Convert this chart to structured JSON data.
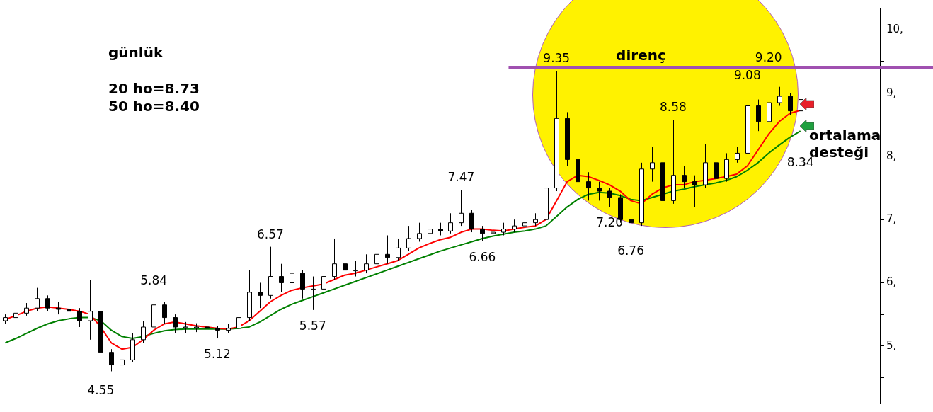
{
  "chart_data": {
    "type": "candlestick",
    "title": "günlük",
    "categories": [
      null,
      null,
      null,
      null,
      null,
      null,
      null,
      null,
      null,
      null,
      null,
      null,
      null,
      null,
      null,
      null,
      null,
      null,
      null,
      null,
      null,
      null,
      null,
      null,
      null,
      null,
      null,
      null,
      null,
      null,
      null,
      null,
      null,
      null,
      null,
      null,
      null,
      null,
      null,
      null,
      null,
      null,
      null,
      null,
      null,
      null,
      null,
      null,
      null,
      null,
      null,
      null,
      null,
      null,
      null,
      null,
      null,
      null,
      null,
      null,
      null,
      null,
      null,
      null,
      null,
      null,
      null,
      null,
      null,
      null,
      null,
      null,
      null,
      null,
      null,
      null,
      null,
      null,
      null,
      null,
      null,
      null,
      null
    ],
    "ohlc": [
      [
        5.4,
        5.5,
        5.35,
        5.45
      ],
      [
        5.45,
        5.6,
        5.4,
        5.52
      ],
      [
        5.52,
        5.68,
        5.48,
        5.6
      ],
      [
        5.6,
        5.92,
        5.55,
        5.75
      ],
      [
        5.75,
        5.8,
        5.55,
        5.6
      ],
      [
        5.6,
        5.7,
        5.5,
        5.58
      ],
      [
        5.58,
        5.65,
        5.45,
        5.55
      ],
      [
        5.55,
        5.6,
        5.3,
        5.4
      ],
      [
        5.4,
        6.05,
        5.1,
        5.55
      ],
      [
        5.55,
        5.6,
        4.55,
        4.9
      ],
      [
        4.9,
        4.95,
        4.6,
        4.7
      ],
      [
        4.7,
        4.9,
        4.65,
        4.78
      ],
      [
        4.78,
        5.2,
        4.75,
        5.1
      ],
      [
        5.1,
        5.4,
        5.05,
        5.3
      ],
      [
        5.3,
        5.84,
        5.25,
        5.65
      ],
      [
        5.65,
        5.7,
        5.35,
        5.45
      ],
      [
        5.45,
        5.5,
        5.2,
        5.3
      ],
      [
        5.3,
        5.38,
        5.2,
        5.3
      ],
      [
        5.3,
        5.36,
        5.22,
        5.3
      ],
      [
        5.3,
        5.35,
        5.18,
        5.28
      ],
      [
        5.28,
        5.32,
        5.12,
        5.25
      ],
      [
        5.25,
        5.35,
        5.2,
        5.28
      ],
      [
        5.28,
        5.55,
        5.25,
        5.45
      ],
      [
        5.45,
        6.2,
        5.4,
        5.85
      ],
      [
        5.85,
        6.0,
        5.6,
        5.8
      ],
      [
        5.8,
        6.57,
        5.75,
        6.1
      ],
      [
        6.1,
        6.3,
        5.85,
        6.0
      ],
      [
        6.0,
        6.4,
        5.9,
        6.15
      ],
      [
        6.15,
        6.2,
        5.75,
        5.9
      ],
      [
        5.9,
        6.1,
        5.57,
        5.9
      ],
      [
        5.9,
        6.25,
        5.85,
        6.1
      ],
      [
        6.1,
        6.7,
        6.05,
        6.3
      ],
      [
        6.3,
        6.35,
        6.1,
        6.2
      ],
      [
        6.2,
        6.35,
        6.1,
        6.2
      ],
      [
        6.2,
        6.45,
        6.15,
        6.3
      ],
      [
        6.3,
        6.6,
        6.25,
        6.45
      ],
      [
        6.45,
        6.75,
        6.3,
        6.4
      ],
      [
        6.4,
        6.7,
        6.35,
        6.55
      ],
      [
        6.55,
        6.9,
        6.5,
        6.7
      ],
      [
        6.7,
        6.95,
        6.65,
        6.78
      ],
      [
        6.78,
        6.95,
        6.7,
        6.85
      ],
      [
        6.85,
        6.95,
        6.75,
        6.82
      ],
      [
        6.82,
        7.1,
        6.78,
        6.95
      ],
      [
        6.95,
        7.47,
        6.9,
        7.1
      ],
      [
        7.1,
        7.15,
        6.8,
        6.85
      ],
      [
        6.85,
        6.9,
        6.66,
        6.78
      ],
      [
        6.78,
        6.9,
        6.72,
        6.8
      ],
      [
        6.8,
        6.95,
        6.75,
        6.85
      ],
      [
        6.85,
        7.0,
        6.8,
        6.9
      ],
      [
        6.9,
        7.05,
        6.85,
        6.95
      ],
      [
        6.95,
        7.1,
        6.9,
        7.0
      ],
      [
        7.0,
        8.0,
        6.95,
        7.5
      ],
      [
        7.5,
        9.35,
        7.45,
        8.6
      ],
      [
        8.6,
        8.7,
        7.85,
        7.95
      ],
      [
        7.95,
        8.05,
        7.5,
        7.6
      ],
      [
        7.6,
        7.75,
        7.3,
        7.5
      ],
      [
        7.5,
        7.6,
        7.3,
        7.45
      ],
      [
        7.45,
        7.5,
        7.2,
        7.35
      ],
      [
        7.35,
        7.4,
        6.95,
        7.0
      ],
      [
        7.0,
        7.1,
        6.76,
        6.95
      ],
      [
        6.95,
        7.9,
        6.9,
        7.8
      ],
      [
        7.8,
        8.15,
        7.6,
        7.9
      ],
      [
        7.9,
        7.95,
        6.9,
        7.3
      ],
      [
        7.3,
        8.58,
        7.25,
        7.7
      ],
      [
        7.7,
        7.85,
        7.5,
        7.6
      ],
      [
        7.6,
        7.7,
        7.2,
        7.55
      ],
      [
        7.55,
        8.2,
        7.5,
        7.9
      ],
      [
        7.9,
        7.95,
        7.4,
        7.65
      ],
      [
        7.65,
        8.05,
        7.6,
        7.95
      ],
      [
        7.95,
        8.15,
        7.9,
        8.05
      ],
      [
        8.05,
        9.08,
        8.0,
        8.8
      ],
      [
        8.8,
        8.9,
        8.4,
        8.55
      ],
      [
        8.55,
        9.2,
        8.5,
        8.85
      ],
      [
        8.85,
        9.1,
        8.8,
        8.95
      ],
      [
        8.95,
        9.0,
        8.65,
        8.72
      ],
      [
        8.72,
        8.95,
        8.7,
        8.9
      ],
      null,
      null,
      null,
      null,
      null,
      null,
      null
    ],
    "series": [
      {
        "type": "line",
        "color": "#ff0000",
        "values": [
          5.42,
          5.48,
          5.55,
          5.6,
          5.62,
          5.6,
          5.58,
          5.55,
          5.5,
          5.3,
          5.05,
          4.95,
          4.98,
          5.1,
          5.25,
          5.35,
          5.38,
          5.35,
          5.32,
          5.3,
          5.28,
          5.27,
          5.3,
          5.4,
          5.55,
          5.7,
          5.8,
          5.88,
          5.92,
          5.95,
          5.98,
          6.05,
          6.12,
          6.15,
          6.2,
          6.25,
          6.3,
          6.35,
          6.45,
          6.55,
          6.62,
          6.68,
          6.72,
          6.8,
          6.85,
          6.85,
          6.83,
          6.82,
          6.85,
          6.88,
          6.9,
          7.0,
          7.3,
          7.6,
          7.7,
          7.68,
          7.62,
          7.55,
          7.45,
          7.3,
          7.25,
          7.4,
          7.5,
          7.55,
          7.55,
          7.6,
          7.62,
          7.65,
          7.68,
          7.72,
          7.85,
          8.1,
          8.35,
          8.55,
          8.68,
          8.73,
          null,
          null,
          null,
          null,
          null,
          null,
          null
        ]
      },
      {
        "type": "line",
        "color": "#008000",
        "values": [
          5.05,
          5.12,
          5.2,
          5.28,
          5.35,
          5.4,
          5.43,
          5.45,
          5.45,
          5.4,
          5.25,
          5.15,
          5.12,
          5.15,
          5.2,
          5.24,
          5.26,
          5.27,
          5.27,
          5.27,
          5.27,
          5.27,
          5.28,
          5.3,
          5.38,
          5.48,
          5.58,
          5.66,
          5.72,
          5.78,
          5.84,
          5.9,
          5.96,
          6.02,
          6.08,
          6.14,
          6.2,
          6.26,
          6.32,
          6.38,
          6.44,
          6.5,
          6.55,
          6.6,
          6.65,
          6.7,
          6.74,
          6.77,
          6.8,
          6.82,
          6.85,
          6.9,
          7.05,
          7.2,
          7.32,
          7.4,
          7.43,
          7.42,
          7.38,
          7.32,
          7.3,
          7.35,
          7.4,
          7.45,
          7.48,
          7.52,
          7.55,
          7.58,
          7.62,
          7.68,
          7.78,
          7.9,
          8.05,
          8.18,
          8.3,
          8.4,
          null,
          null,
          null,
          null,
          null,
          null,
          null
        ]
      }
    ],
    "ylim": [
      4.09,
      10.34
    ],
    "yticks": [
      {
        "value": 4.5,
        "label": null
      },
      {
        "value": 5,
        "label": "5,"
      },
      {
        "value": 5.5,
        "label": null
      },
      {
        "value": 6,
        "label": "6,"
      },
      {
        "value": 6.5,
        "label": null
      },
      {
        "value": 7,
        "label": "7,"
      },
      {
        "value": 7.5,
        "label": null
      },
      {
        "value": 8,
        "label": "8,"
      },
      {
        "value": 8.5,
        "label": null
      },
      {
        "value": 9,
        "label": "9,"
      },
      {
        "value": 9.5,
        "label": null
      },
      {
        "value": 10,
        "label": "10,"
      }
    ],
    "ref_lines": [
      {
        "axis": "y",
        "value": 9.41,
        "label": "direnç",
        "color": "#a050b0"
      }
    ],
    "annotations": [
      "20 ho=8.73",
      "50 ho=8.40",
      "ortalama desteği",
      {
        "text": "9.35",
        "y": 9.35
      },
      {
        "text": "7.47",
        "y": 7.47
      },
      {
        "text": "6.57",
        "y": 6.57
      },
      {
        "text": "5.84",
        "y": 5.84
      },
      {
        "text": "8.58",
        "y": 8.58
      },
      {
        "text": "9.08",
        "y": 9.08
      },
      {
        "text": "9.20",
        "y": 9.2
      },
      {
        "text": "4.55",
        "y": 4.55
      },
      {
        "text": "5.12",
        "y": 5.12
      },
      {
        "text": "5.57",
        "y": 5.57
      },
      {
        "text": "6.66",
        "y": 6.66
      },
      {
        "text": "6.76",
        "y": 6.76
      },
      {
        "text": "7.20",
        "y": 7.2
      },
      {
        "text": "8.34",
        "y": 8.34
      }
    ],
    "legend": false,
    "grid": false,
    "tick_labels": "y"
  }
}
